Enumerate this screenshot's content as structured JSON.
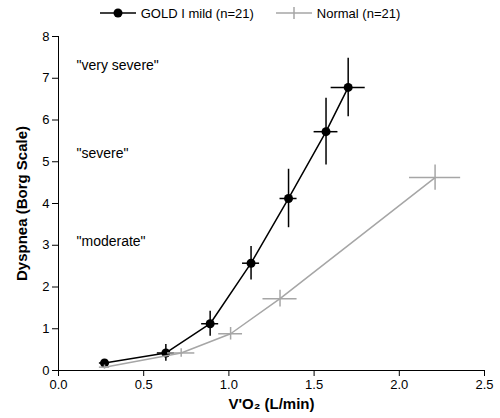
{
  "chart_data": {
    "type": "line",
    "x_label": "V'O₂ (L/min)",
    "y_label": "Dyspnea (Borg Scale)",
    "xlim": [
      0,
      2.5
    ],
    "xticks": [
      {
        "value": 0,
        "label": "0.0"
      },
      {
        "value": 0.5,
        "label": "0.5"
      },
      {
        "value": 1,
        "label": "1.0"
      },
      {
        "value": 1.5,
        "label": "1.5"
      },
      {
        "value": 2,
        "label": "2.0"
      },
      {
        "value": 2.5,
        "label": "2.5"
      }
    ],
    "ylim": [
      0,
      8
    ],
    "yticks": [
      0,
      1,
      2,
      3,
      4,
      5,
      6,
      7,
      8
    ],
    "grid": false,
    "legend": "top",
    "annotations": [
      {
        "text": "\"very severe\"",
        "y": 7.3
      },
      {
        "text": "\"severe\"",
        "y": 5.2
      },
      {
        "text": "\"moderate\"",
        "y": 3.1
      }
    ],
    "series": [
      {
        "name": "GOLD I mild (n=21)",
        "color": "#000000",
        "marker": "circle",
        "line_style": "solid",
        "x": [
          0.27,
          0.63,
          0.89,
          1.13,
          1.35,
          1.57,
          1.7
        ],
        "values": [
          0.18,
          0.42,
          1.12,
          2.57,
          4.12,
          5.72,
          6.78
        ],
        "x_error": [
          0.03,
          0.05,
          0.05,
          0.05,
          0.05,
          0.07,
          0.1
        ],
        "y_error": [
          0.05,
          0.2,
          0.3,
          0.4,
          0.7,
          0.8,
          0.7
        ]
      },
      {
        "name": "Normal (n=21)",
        "color": "#a6a6a6",
        "marker": "none",
        "line_style": "solid",
        "x": [
          0.27,
          0.72,
          1.01,
          1.3,
          2.21
        ],
        "values": [
          0.08,
          0.42,
          0.88,
          1.72,
          4.62
        ],
        "x_error": [
          0.03,
          0.08,
          0.07,
          0.1,
          0.15
        ],
        "y_error": [
          0.05,
          0.1,
          0.15,
          0.2,
          0.3
        ]
      }
    ]
  }
}
